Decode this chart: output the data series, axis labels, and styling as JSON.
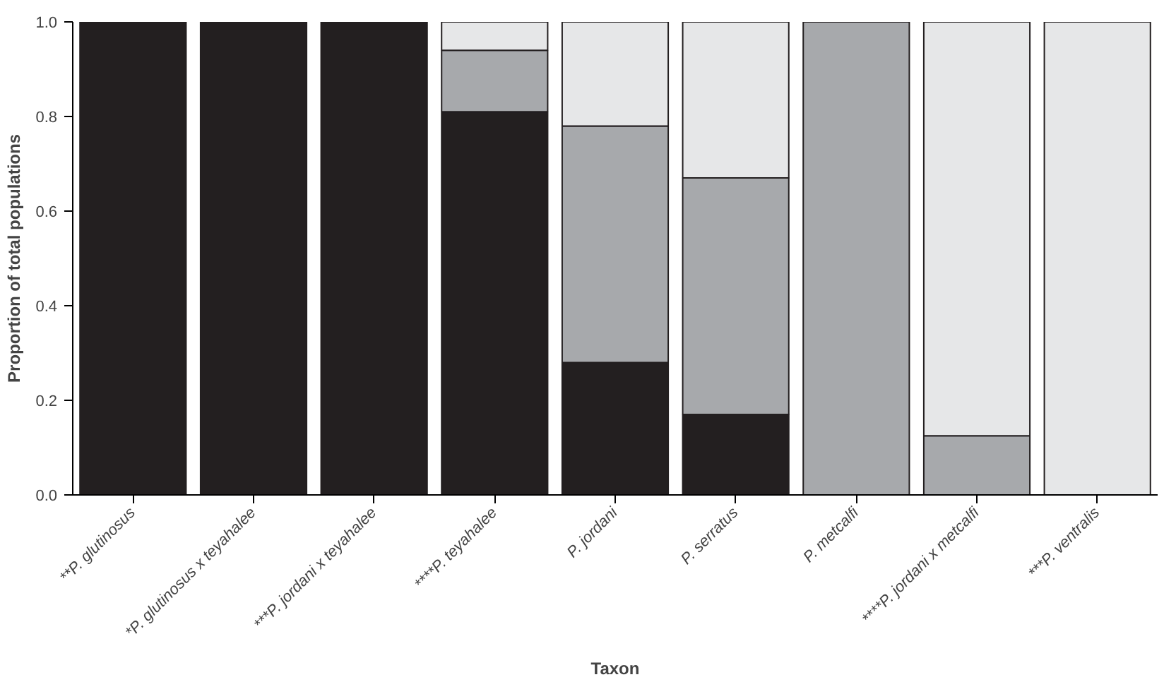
{
  "chart_data": {
    "type": "bar",
    "stacked": true,
    "xlabel": "Taxon",
    "ylabel": "Proportion of total populations",
    "categories": [
      "**P. glutinosus",
      "*P. glutinosus x teyahalee",
      "***P. jordani x teyahalee",
      "****P. teyahalee",
      "P. jordani",
      "P. serratus",
      "P. metcalfi",
      "****P. jordani x metcalfi",
      "***P. ventralis"
    ],
    "series": [
      {
        "color": "#231f20",
        "values": [
          1,
          1,
          1,
          0.81,
          0.28,
          0.17,
          0,
          0,
          0
        ]
      },
      {
        "color": "#a7a9ac",
        "values": [
          0,
          0,
          0,
          0.13,
          0.5,
          0.5,
          1,
          0.125,
          0
        ]
      },
      {
        "color": "#e6e7e8",
        "values": [
          0,
          0,
          0,
          0.06,
          0.22,
          0.33,
          0,
          0.875,
          1
        ]
      }
    ],
    "ylim": [
      0,
      1
    ],
    "yticks": [
      {
        "value": 0,
        "label": "0.0"
      },
      {
        "value": 0.2,
        "label": "0.2"
      },
      {
        "value": 0.4,
        "label": "0.4"
      },
      {
        "value": 0.6,
        "label": "0.6"
      },
      {
        "value": 0.8,
        "label": "0.8"
      },
      {
        "value": 1,
        "label": "1.0"
      }
    ],
    "grid": false
  }
}
